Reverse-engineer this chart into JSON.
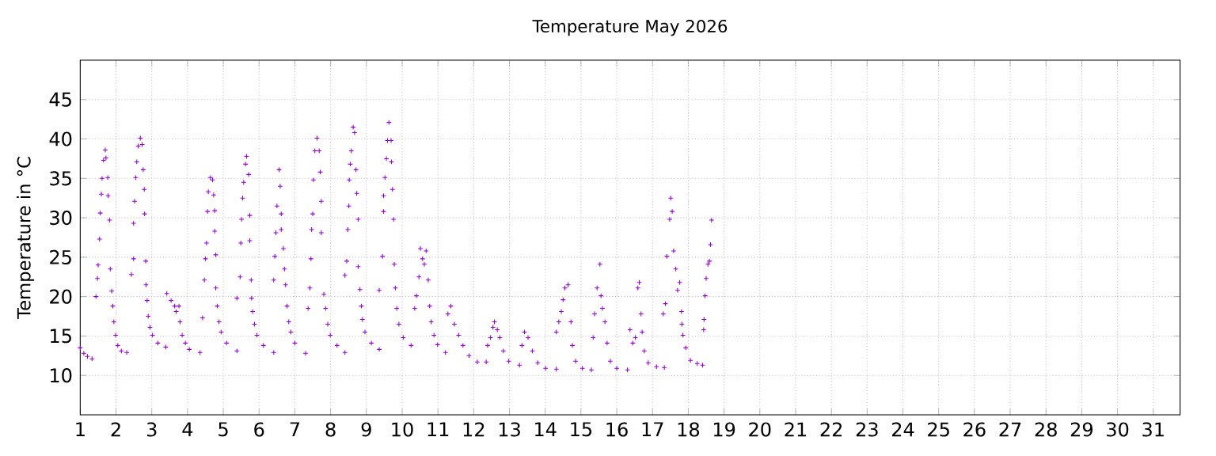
{
  "chart_data": {
    "type": "scatter",
    "title": "Temperature May 2026",
    "ylabel": "Temperature in °C",
    "xlim": [
      1,
      31.75
    ],
    "xticks": [
      1,
      2,
      3,
      4,
      5,
      6,
      7,
      8,
      9,
      10,
      11,
      12,
      13,
      14,
      15,
      16,
      17,
      18,
      19,
      20,
      21,
      22,
      23,
      24,
      25,
      26,
      27,
      28,
      29,
      30,
      31
    ],
    "ylim": [
      5,
      50
    ],
    "yticks": [
      10,
      15,
      20,
      25,
      30,
      35,
      40,
      45
    ],
    "grid": true,
    "marker": "cross",
    "series": [
      {
        "color": "#9400d3",
        "x": [
          1.0,
          1.1,
          1.2,
          1.33,
          1.44,
          1.48,
          1.5,
          1.54,
          1.56,
          1.59,
          1.61,
          1.65,
          1.7,
          1.72,
          1.77,
          1.78,
          1.82,
          1.84,
          1.88,
          1.91,
          1.94,
          1.99,
          2.05,
          2.15,
          2.3,
          2.43,
          2.49,
          2.49,
          2.52,
          2.55,
          2.58,
          2.62,
          2.68,
          2.73,
          2.76,
          2.79,
          2.8,
          2.83,
          2.84,
          2.87,
          2.9,
          2.95,
          3.02,
          3.17,
          3.39,
          3.42,
          3.54,
          3.64,
          3.68,
          3.76,
          3.79,
          3.85,
          3.94,
          4.05,
          4.35,
          4.42,
          4.47,
          4.5,
          4.53,
          4.56,
          4.58,
          4.64,
          4.7,
          4.73,
          4.76,
          4.76,
          4.79,
          4.79,
          4.83,
          4.88,
          4.94,
          5.09,
          5.38,
          5.38,
          5.47,
          5.49,
          5.51,
          5.54,
          5.57,
          5.62,
          5.65,
          5.71,
          5.74,
          5.74,
          5.78,
          5.79,
          5.82,
          5.87,
          5.94,
          6.12,
          6.41,
          6.41,
          6.44,
          6.47,
          6.5,
          6.56,
          6.59,
          6.62,
          6.62,
          6.68,
          6.71,
          6.74,
          6.78,
          6.83,
          6.89,
          7.0,
          7.3,
          7.37,
          7.42,
          7.45,
          7.47,
          7.5,
          7.52,
          7.56,
          7.62,
          7.68,
          7.71,
          7.74,
          7.74,
          7.81,
          7.86,
          7.92,
          7.99,
          8.18,
          8.4,
          8.4,
          8.45,
          8.48,
          8.51,
          8.52,
          8.55,
          8.58,
          8.63,
          8.67,
          8.71,
          8.73,
          8.77,
          8.77,
          8.82,
          8.86,
          8.89,
          8.96,
          9.14,
          9.36,
          9.36,
          9.45,
          9.48,
          9.48,
          9.52,
          9.56,
          9.59,
          9.63,
          9.69,
          9.7,
          9.73,
          9.76,
          9.78,
          9.81,
          9.85,
          9.91,
          10.03,
          10.25,
          10.35,
          10.4,
          10.47,
          10.51,
          10.57,
          10.62,
          10.67,
          10.73,
          10.77,
          10.81,
          10.89,
          10.99,
          11.21,
          11.28,
          11.36,
          11.46,
          11.58,
          11.7,
          11.87,
          12.1,
          12.35,
          12.39,
          12.47,
          12.54,
          12.58,
          12.66,
          12.73,
          12.83,
          12.98,
          13.28,
          13.35,
          13.42,
          13.52,
          13.64,
          13.79,
          14.01,
          14.31,
          14.31,
          14.38,
          14.45,
          14.5,
          14.55,
          14.64,
          14.72,
          14.76,
          14.85,
          15.04,
          15.29,
          15.34,
          15.38,
          15.45,
          15.53,
          15.56,
          15.6,
          15.67,
          15.73,
          15.82,
          16.0,
          16.3,
          16.37,
          16.45,
          16.52,
          16.59,
          16.63,
          16.68,
          16.71,
          16.77,
          16.88,
          17.11,
          17.33,
          17.3,
          17.36,
          17.4,
          17.48,
          17.51,
          17.55,
          17.59,
          17.65,
          17.7,
          17.76,
          17.81,
          17.82,
          17.85,
          17.93,
          18.06,
          18.25,
          18.4,
          18.43,
          18.44,
          18.47,
          18.5,
          18.55,
          18.59,
          18.62,
          18.65
        ],
        "values": [
          13.5,
          12.8,
          12.4,
          12.1,
          20,
          22.3,
          24,
          27.3,
          30.6,
          33,
          35,
          37.3,
          38.6,
          37.6,
          35.1,
          32.8,
          29.7,
          23.5,
          20.7,
          18.8,
          16.8,
          15.1,
          13.8,
          13.1,
          12.9,
          22.8,
          24.8,
          29.3,
          32.1,
          35.1,
          37.1,
          39.1,
          40.1,
          39.3,
          36.1,
          33.6,
          30.5,
          24.5,
          21.5,
          19.5,
          17.5,
          16.1,
          15.1,
          14.1,
          13.6,
          20.4,
          19.5,
          18.8,
          18.1,
          18.8,
          16.8,
          15.1,
          14.1,
          13.3,
          12.9,
          17.3,
          22.1,
          24.8,
          26.8,
          30.8,
          33.3,
          35.1,
          34.8,
          32.9,
          30.9,
          28.3,
          25.3,
          21.1,
          18.8,
          16.8,
          15.5,
          14.1,
          13.1,
          19.8,
          22.5,
          26.8,
          29.8,
          32.5,
          34.5,
          36.8,
          37.8,
          35.5,
          30.3,
          27.1,
          22.1,
          19.8,
          18.1,
          16.5,
          15.1,
          13.8,
          12.9,
          22.1,
          25.1,
          28.1,
          31.5,
          36.1,
          34,
          30.5,
          28.5,
          26.1,
          23.5,
          21.5,
          18.8,
          16.8,
          15.5,
          14.1,
          12.8,
          18.5,
          21.1,
          24.8,
          28.5,
          30.5,
          34.8,
          38.5,
          40.1,
          38.5,
          35.8,
          32.1,
          28.1,
          20.3,
          18.5,
          16.5,
          15.1,
          13.8,
          12.9,
          22.7,
          24.5,
          28.5,
          31.5,
          34.8,
          36.8,
          38.5,
          41.5,
          40.8,
          36.1,
          33.1,
          29.8,
          23.8,
          20.9,
          18.8,
          17.1,
          15.5,
          14.1,
          13.3,
          20.8,
          25.1,
          30.8,
          32.8,
          35.1,
          37.5,
          39.8,
          42.1,
          39.8,
          37.1,
          33.6,
          29.8,
          24.1,
          21.1,
          18.5,
          16.5,
          14.8,
          13.8,
          18.5,
          20.1,
          22.5,
          26.1,
          24.8,
          24.1,
          25.8,
          22.1,
          18.8,
          16.8,
          15.1,
          13.9,
          12.9,
          17.8,
          18.8,
          16.5,
          15.1,
          13.8,
          12.5,
          11.7,
          11.7,
          13.8,
          14.8,
          16.1,
          16.8,
          15.8,
          14.8,
          13.1,
          11.8,
          11.3,
          13.8,
          15.5,
          14.8,
          13.1,
          11.6,
          10.9,
          10.8,
          15.5,
          16.8,
          18.1,
          19.6,
          21.1,
          21.5,
          16.8,
          13.8,
          11.8,
          10.9,
          10.7,
          14.8,
          17.8,
          21.1,
          24.1,
          20.1,
          18.5,
          16.8,
          14.1,
          11.8,
          10.9,
          10.7,
          15.8,
          14.1,
          14.8,
          21.1,
          21.8,
          17.8,
          15.5,
          13.1,
          11.6,
          11.1,
          11.0,
          17.8,
          19.1,
          25.1,
          29.8,
          32.5,
          30.8,
          25.8,
          23.5,
          20.8,
          21.8,
          18.1,
          16.5,
          15.1,
          13.5,
          11.9,
          11.5,
          11.3,
          15.8,
          17.1,
          20.1,
          22.3,
          24.1,
          24.5,
          26.6,
          29.7
        ]
      }
    ]
  }
}
